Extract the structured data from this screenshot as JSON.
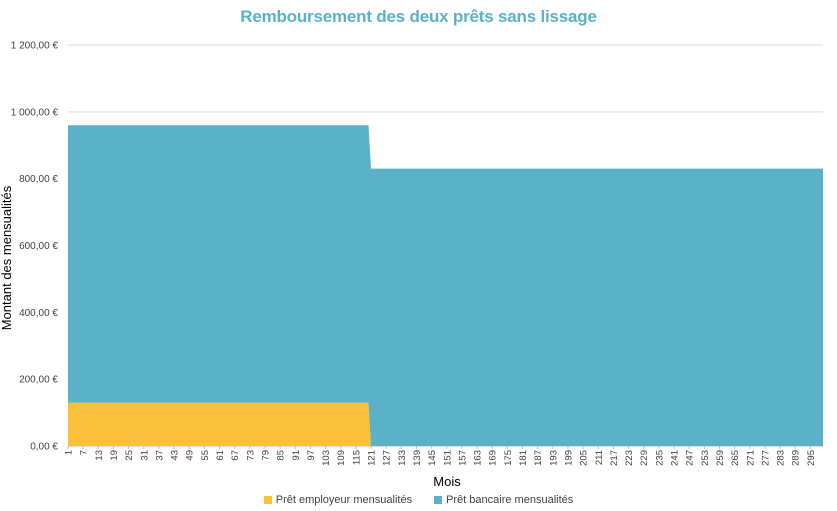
{
  "chart_data": {
    "type": "area",
    "stacked": true,
    "title": "Remboursement des deux prêts sans lissage",
    "xlabel": "Mois",
    "ylabel": "Montant des mensualités",
    "ylim": [
      0,
      1200
    ],
    "yticks": [
      "0,00 €",
      "200,00 €",
      "400,00 €",
      "600,00 €",
      "800,00 €",
      "1 000,00 €",
      "1 200,00 €"
    ],
    "xlim": [
      1,
      300
    ],
    "xticks": [
      1,
      7,
      13,
      19,
      25,
      31,
      37,
      43,
      49,
      55,
      61,
      67,
      73,
      79,
      85,
      91,
      97,
      103,
      109,
      115,
      121,
      127,
      133,
      139,
      145,
      151,
      157,
      163,
      169,
      175,
      181,
      187,
      193,
      199,
      205,
      211,
      217,
      223,
      229,
      235,
      241,
      247,
      253,
      259,
      265,
      271,
      277,
      283,
      289,
      295
    ],
    "grid": true,
    "legend_position": "bottom",
    "series": [
      {
        "name": "Prêt employeur mensualités",
        "color": "#F9C03B",
        "points": [
          [
            1,
            130
          ],
          [
            120,
            130
          ],
          [
            121,
            0
          ],
          [
            300,
            0
          ]
        ]
      },
      {
        "name": "Prêt bancaire mensualités",
        "color": "#5BB1C8",
        "points": [
          [
            1,
            830
          ],
          [
            120,
            830
          ],
          [
            121,
            830
          ],
          [
            300,
            830
          ]
        ]
      }
    ]
  }
}
